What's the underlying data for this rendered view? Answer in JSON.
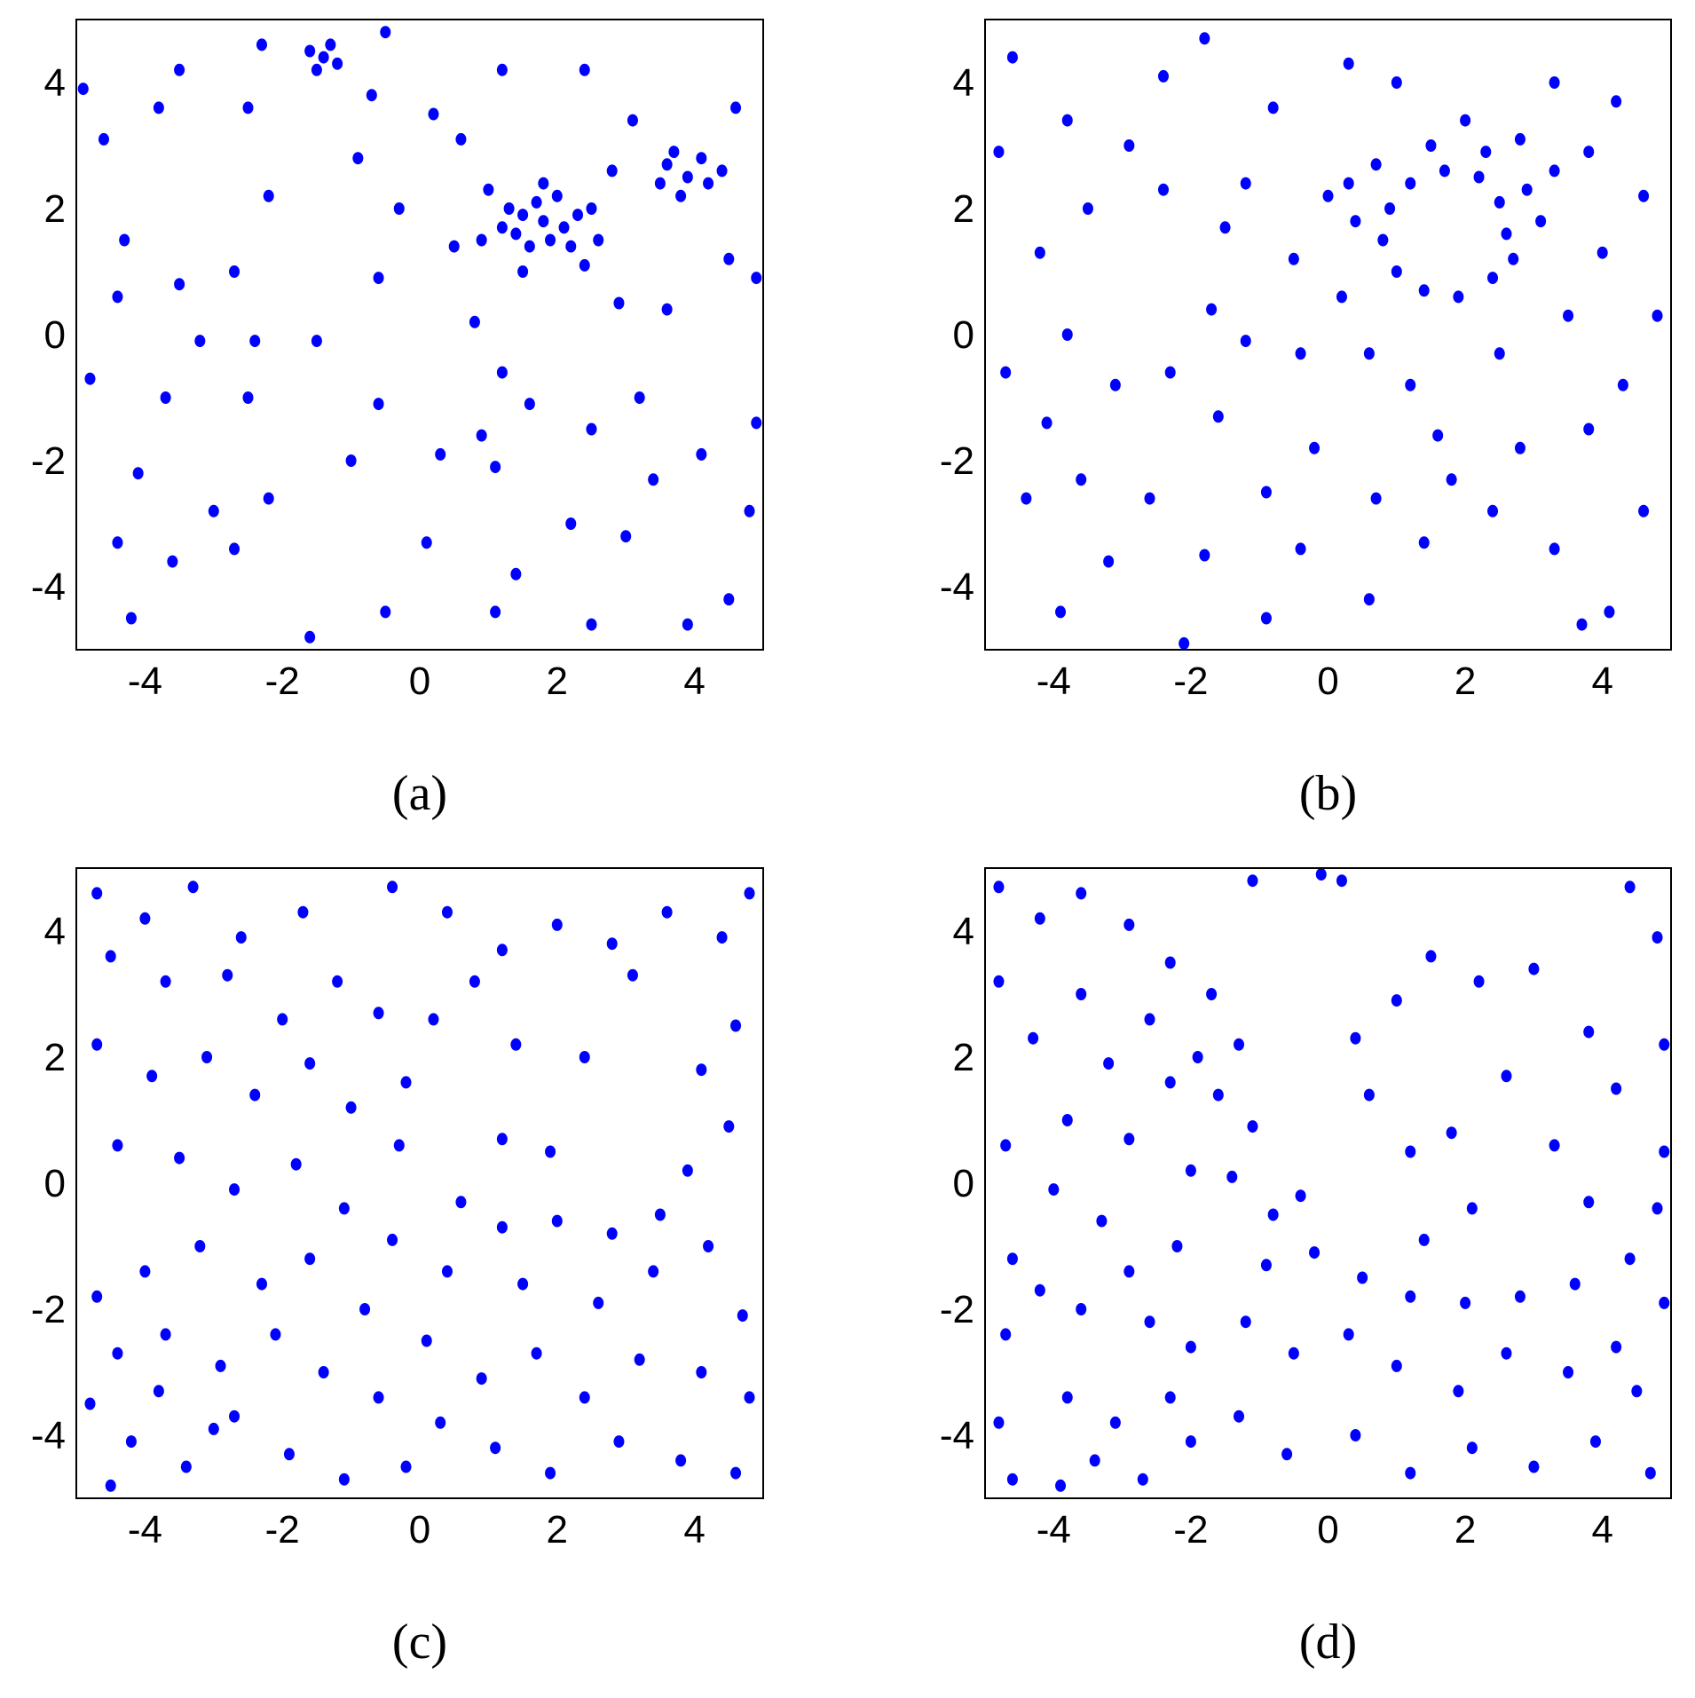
{
  "chart_data": [
    {
      "type": "scatter",
      "title": "(a)",
      "color": "#0000ff",
      "xlim": [
        -5,
        5
      ],
      "ylim": [
        -5,
        5
      ],
      "xticks": [
        -4,
        -2,
        0,
        2,
        4
      ],
      "yticks": [
        -4,
        -2,
        0,
        2,
        4
      ],
      "x": [
        1.8,
        1.5,
        2.1,
        1.7,
        2.0,
        1.4,
        2.3,
        1.6,
        1.9,
        2.2,
        1.3,
        2.5,
        1.8,
        1.2,
        2.6,
        1.0,
        2.8,
        2.4,
        1.5,
        0.9,
        3.9,
        3.6,
        4.2,
        3.8,
        4.1,
        3.5,
        4.4,
        3.7,
        -1.4,
        -1.6,
        -1.2,
        -1.3,
        -1.5,
        -4.6,
        -3.8,
        -2.5,
        -4.3,
        -3.5,
        -2.2,
        -4.4,
        -3.2,
        -2.4,
        -1.5,
        -4.8,
        -3.7,
        -2.5,
        -4.1,
        -3.0,
        -2.2,
        -4.4,
        -3.6,
        -2.7,
        -4.2,
        -1.6,
        -0.5,
        0.1,
        -0.6,
        0.3,
        -0.6,
        -0.3,
        -0.9,
        -0.7,
        0.2,
        0.5,
        0.8,
        1.2,
        1.6,
        2.5,
        3.2,
        4.1,
        3.4,
        1.1,
        1.4,
        2.2,
        1.1,
        2.5,
        3.0,
        4.5,
        4.8,
        3.9,
        4.9,
        4.9,
        4.6,
        3.1,
        2.4,
        1.2,
        0.6,
        2.9,
        3.6,
        4.5,
        0.9,
        -1.0,
        -2.7,
        -3.5,
        -4.9,
        -0.5,
        -2.3
      ],
      "values": [
        1.8,
        1.9,
        1.7,
        2.1,
        2.2,
        1.6,
        1.9,
        1.4,
        1.5,
        1.4,
        2.0,
        2.0,
        2.4,
        1.7,
        1.5,
        2.3,
        2.6,
        1.1,
        1.0,
        1.5,
        2.5,
        2.7,
        2.4,
        2.2,
        2.8,
        2.4,
        2.6,
        2.9,
        4.4,
        4.5,
        4.3,
        4.6,
        4.2,
        3.1,
        3.6,
        3.6,
        1.5,
        0.8,
        2.2,
        0.6,
        -0.1,
        -0.1,
        -0.1,
        -0.7,
        -1.0,
        -1.0,
        -2.2,
        -2.8,
        -2.6,
        -3.3,
        -3.6,
        -3.4,
        -4.5,
        -4.8,
        -4.4,
        -3.3,
        -1.1,
        -1.9,
        0.9,
        2.0,
        2.8,
        3.8,
        3.5,
        1.4,
        0.2,
        -0.6,
        -1.1,
        -1.5,
        -1.0,
        -1.9,
        -2.3,
        -2.1,
        -3.8,
        -3.0,
        -4.4,
        -4.6,
        -3.2,
        -4.2,
        -2.8,
        -4.6,
        -1.4,
        0.9,
        3.6,
        3.4,
        4.2,
        4.2,
        3.1,
        0.5,
        0.4,
        1.2,
        -1.6,
        -2.0,
        1.0,
        4.2,
        3.9,
        4.8,
        4.6
      ]
    },
    {
      "type": "scatter",
      "title": "(b)",
      "color": "#0000ff",
      "xlim": [
        -5,
        5
      ],
      "ylim": [
        -5,
        5
      ],
      "xticks": [
        -4,
        -2,
        0,
        2,
        4
      ],
      "yticks": [
        -4,
        -2,
        0,
        2,
        4
      ],
      "x": [
        2.6,
        2.5,
        2.2,
        1.7,
        1.2,
        0.9,
        0.8,
        1.0,
        1.4,
        1.9,
        2.4,
        2.7,
        2.9,
        2.3,
        1.5,
        0.7,
        0.4,
        3.1,
        3.3,
        2.0,
        2.8,
        0.3,
        -4.6,
        -3.8,
        -2.4,
        -1.8,
        -0.8,
        0.3,
        1.0,
        3.3,
        4.2,
        4.6,
        4.8,
        4.3,
        3.8,
        4.6,
        4.1,
        3.3,
        2.4,
        1.8,
        1.4,
        0.6,
        -0.4,
        -0.9,
        -1.8,
        -2.6,
        -3.2,
        -3.9,
        -4.4,
        -4.1,
        -4.7,
        -3.8,
        -3.1,
        -2.3,
        -1.7,
        -1.2,
        -0.4,
        0.2,
        -0.5,
        -1.5,
        -2.4,
        -3.5,
        -4.2,
        -4.8,
        -2.9,
        -1.2,
        0,
        0.6,
        1.2,
        2.5,
        3.5,
        4.0,
        3.8,
        -0.2,
        -0.9,
        0.7,
        2.8,
        3.7,
        -2.1,
        -3.6,
        -1.6,
        1.6
      ],
      "values": [
        1.6,
        2.1,
        2.5,
        2.6,
        2.4,
        2.0,
        1.5,
        1.0,
        0.7,
        0.6,
        0.9,
        1.2,
        2.3,
        2.9,
        3.0,
        2.7,
        1.8,
        1.8,
        2.6,
        3.4,
        3.1,
        2.4,
        4.4,
        3.4,
        4.1,
        4.7,
        3.6,
        4.3,
        4.0,
        4.0,
        3.7,
        2.2,
        0.3,
        -0.8,
        -1.5,
        -2.8,
        -4.4,
        -3.4,
        -2.8,
        -2.3,
        -3.3,
        -4.2,
        -3.4,
        -4.5,
        -3.5,
        -2.6,
        -3.6,
        -4.4,
        -2.6,
        -1.4,
        -0.6,
        0,
        -0.8,
        -0.6,
        0.4,
        -0.1,
        -0.3,
        0.6,
        1.2,
        1.7,
        2.3,
        2.0,
        1.3,
        2.9,
        3.0,
        2.4,
        2.2,
        -0.3,
        -0.8,
        -0.3,
        0.3,
        1.3,
        2.9,
        -1.8,
        -2.5,
        -2.6,
        -1.8,
        -4.6,
        -4.9,
        -2.3,
        -1.3,
        -1.6
      ]
    },
    {
      "type": "scatter",
      "title": "(c)",
      "color": "#0000ff",
      "xlim": [
        -5,
        5
      ],
      "ylim": [
        -5,
        5
      ],
      "xticks": [
        -4,
        -2,
        0,
        2,
        4
      ],
      "yticks": [
        -4,
        -2,
        0,
        2,
        4
      ],
      "x": [
        -4.7,
        -4.0,
        -3.3,
        -2.6,
        -1.7,
        -0.4,
        0.4,
        1.2,
        2.0,
        2.8,
        3.6,
        4.4,
        4.8,
        3.1,
        0.8,
        0.2,
        4.6,
        4.1,
        4.5,
        3.9,
        3.5,
        2.8,
        2.0,
        1.2,
        0.6,
        -0.3,
        -0.2,
        -0.6,
        -1.2,
        -2.0,
        -2.8,
        -3.7,
        -4.5,
        -4.7,
        -3.9,
        -3.1,
        -2.4,
        -1.6,
        -1.0,
        -4.4,
        -3.5,
        -2.7,
        -1.8,
        -1.1,
        -0.4,
        0.4,
        1.5,
        2.6,
        3.4,
        4.2,
        4.7,
        4.1,
        3.2,
        2.4,
        1.7,
        0.9,
        0.1,
        -0.8,
        -1.6,
        -2.3,
        -3.2,
        -4.0,
        -4.7,
        -4.4,
        -3.7,
        -2.9,
        -2.1,
        -1.4,
        -0.6,
        0.3,
        1.1,
        1.9,
        2.9,
        3.8,
        4.6,
        4.8,
        -4.8,
        -4.2,
        -3.4,
        -2.7,
        -1.9,
        -1.1,
        -0.2,
        -3.8,
        -3.0,
        -4.5,
        1.4,
        2.4,
        1.9,
        1.2
      ],
      "values": [
        4.6,
        4.2,
        4.7,
        3.9,
        4.3,
        4.7,
        4.3,
        3.7,
        4.1,
        3.8,
        4.3,
        3.9,
        4.6,
        3.3,
        3.2,
        2.6,
        2.5,
        1.8,
        0.9,
        0.2,
        -0.5,
        -0.8,
        -0.6,
        -0.7,
        -0.3,
        0.6,
        1.6,
        2.7,
        3.2,
        2.6,
        3.3,
        3.2,
        3.6,
        2.2,
        1.7,
        2.0,
        1.4,
        1.9,
        1.2,
        0.6,
        0.4,
        -0.1,
        0.3,
        -0.4,
        -0.9,
        -1.4,
        -1.6,
        -1.9,
        -1.4,
        -1.0,
        -2.1,
        -3.0,
        -2.8,
        -3.4,
        -2.7,
        -3.1,
        -2.5,
        -2.0,
        -1.2,
        -1.6,
        -1.0,
        -1.4,
        -1.8,
        -2.7,
        -2.4,
        -2.9,
        -2.4,
        -3.0,
        -3.4,
        -3.8,
        -4.2,
        -4.6,
        -4.1,
        -4.4,
        -4.6,
        -3.4,
        -3.5,
        -4.1,
        -4.5,
        -3.7,
        -4.3,
        -4.7,
        -4.5,
        -3.3,
        -3.9,
        -4.8,
        2.2,
        2.0,
        0.5,
        0.7
      ]
    },
    {
      "type": "scatter",
      "title": "(d)",
      "color": "#0000ff",
      "xlim": [
        -5,
        5
      ],
      "ylim": [
        -5,
        5
      ],
      "xticks": [
        -4,
        -2,
        0,
        2,
        4
      ],
      "yticks": [
        -4,
        -2,
        0,
        2,
        4
      ],
      "x": [
        1.5,
        2.2,
        3.0,
        3.8,
        1.0,
        2.6,
        1.8,
        3.3,
        0.6,
        1.2,
        3.8,
        2.1,
        -0.1,
        0.4,
        4.2,
        1.4,
        -3.8,
        -3.1,
        -3.4,
        -4.8,
        -4.2,
        -3.6,
        -2.9,
        -2.3,
        -1.7,
        -1.3,
        -1.6,
        -1.1,
        -1.4,
        -0.8,
        -0.2,
        0.5,
        1.2,
        2.0,
        2.8,
        3.6,
        4.4,
        4.8,
        4.9,
        4.2,
        3.5,
        2.6,
        1.9,
        1.0,
        0.3,
        -0.5,
        -1.2,
        -2.0,
        -2.3,
        -2.0,
        -1.3,
        -0.6,
        0.4,
        1.2,
        2.1,
        3.0,
        3.9,
        4.7,
        4.5,
        -4.7,
        -4.2,
        -3.6,
        -2.9,
        -2.2,
        -3.3,
        -4.0,
        -4.7,
        -3.8,
        -2.9,
        -2.3,
        -3.2,
        -4.3,
        -4.8,
        -3.6,
        -2.6,
        -1.9,
        -2.0,
        -4.6,
        -4.8,
        -4.6,
        -3.9,
        -2.7,
        -2.6,
        -1.1,
        0.2,
        4.4,
        4.8,
        4.9,
        4.9,
        -0.4,
        -0.9
      ],
      "values": [
        3.6,
        3.2,
        3.4,
        2.4,
        2.9,
        1.7,
        0.8,
        0.6,
        1.4,
        0.5,
        -0.3,
        -0.4,
        4.9,
        2.3,
        1.5,
        -0.9,
        -3.4,
        -3.8,
        -4.4,
        4.7,
        4.2,
        4.6,
        4.1,
        3.5,
        3.0,
        2.2,
        1.4,
        0.9,
        0.1,
        -0.5,
        -1.1,
        -1.5,
        -1.8,
        -1.9,
        -1.8,
        -1.6,
        -1.2,
        -0.4,
        -1.9,
        -2.6,
        -3.0,
        -2.7,
        -3.3,
        -2.9,
        -2.4,
        -2.7,
        -2.2,
        -2.6,
        -3.4,
        -4.1,
        -3.7,
        -4.3,
        -4.0,
        -4.6,
        -4.2,
        -4.5,
        -4.1,
        -4.6,
        -3.3,
        -2.4,
        -1.7,
        -2.0,
        -1.4,
        -1.0,
        -0.6,
        -0.1,
        0.6,
        1.0,
        0.7,
        1.6,
        1.9,
        2.3,
        3.2,
        3.0,
        2.6,
        2.0,
        0.2,
        -1.2,
        -3.8,
        -4.7,
        -4.8,
        -4.7,
        -2.2,
        4.8,
        4.8,
        4.7,
        3.9,
        2.2,
        0.5,
        -0.2,
        -1.3
      ]
    }
  ]
}
